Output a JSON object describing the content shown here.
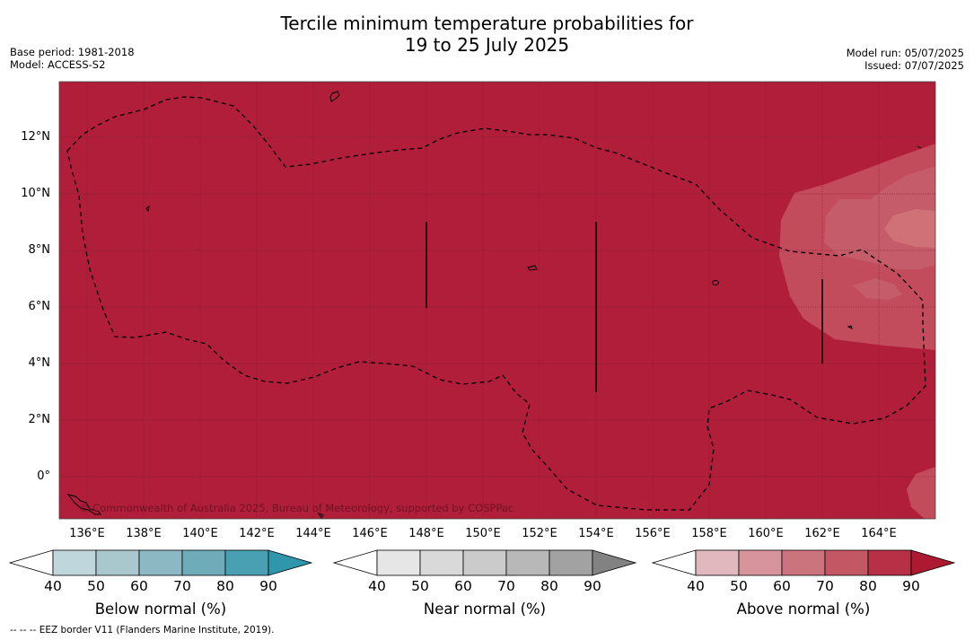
{
  "header": {
    "title_line1": "Tercile minimum temperature probabilities for",
    "title_line2": "19 to 25 July 2025",
    "base_period": "Base period: 1981-2018",
    "model": "Model: ACCESS-S2",
    "model_run": "Model run: 05/07/2025",
    "issued": "Issued: 07/07/2025"
  },
  "map": {
    "background_color": "#b01e3a",
    "lat_labels": [
      "12°N",
      "10°N",
      "8°N",
      "6°N",
      "4°N",
      "2°N",
      "0°"
    ],
    "lon_labels": [
      "136°E",
      "138°E",
      "140°E",
      "142°E",
      "144°E",
      "146°E",
      "148°E",
      "150°E",
      "152°E",
      "154°E",
      "156°E",
      "158°E",
      "160°E",
      "162°E",
      "164°E"
    ],
    "copyright": "© Commonwealth of Australia 2025, Bureau of Meteorology, supported by COSPPac"
  },
  "colorbars": {
    "ticks": [
      "40",
      "50",
      "60",
      "70",
      "80",
      "90"
    ],
    "below": {
      "label": "Below normal (%)",
      "colors": [
        "#ffffff",
        "#bed6dc",
        "#a9c8cd",
        "#8bb8c3",
        "#6eacba",
        "#4aa0b3",
        "#2f96ab"
      ]
    },
    "near": {
      "label": "Near normal (%)",
      "colors": [
        "#ffffff",
        "#e6e6e6",
        "#d9d9d9",
        "#cbcbcb",
        "#b8b8b8",
        "#a2a2a2",
        "#828282"
      ]
    },
    "above": {
      "label": "Above normal (%)",
      "colors": [
        "#ffffff",
        "#e2b8bf",
        "#d7949c",
        "#cc747d",
        "#c45764",
        "#b83046",
        "#ae1932"
      ]
    }
  },
  "footer": "--  --  -- EEZ border V11 (Flanders Marine Institute, 2019)."
}
